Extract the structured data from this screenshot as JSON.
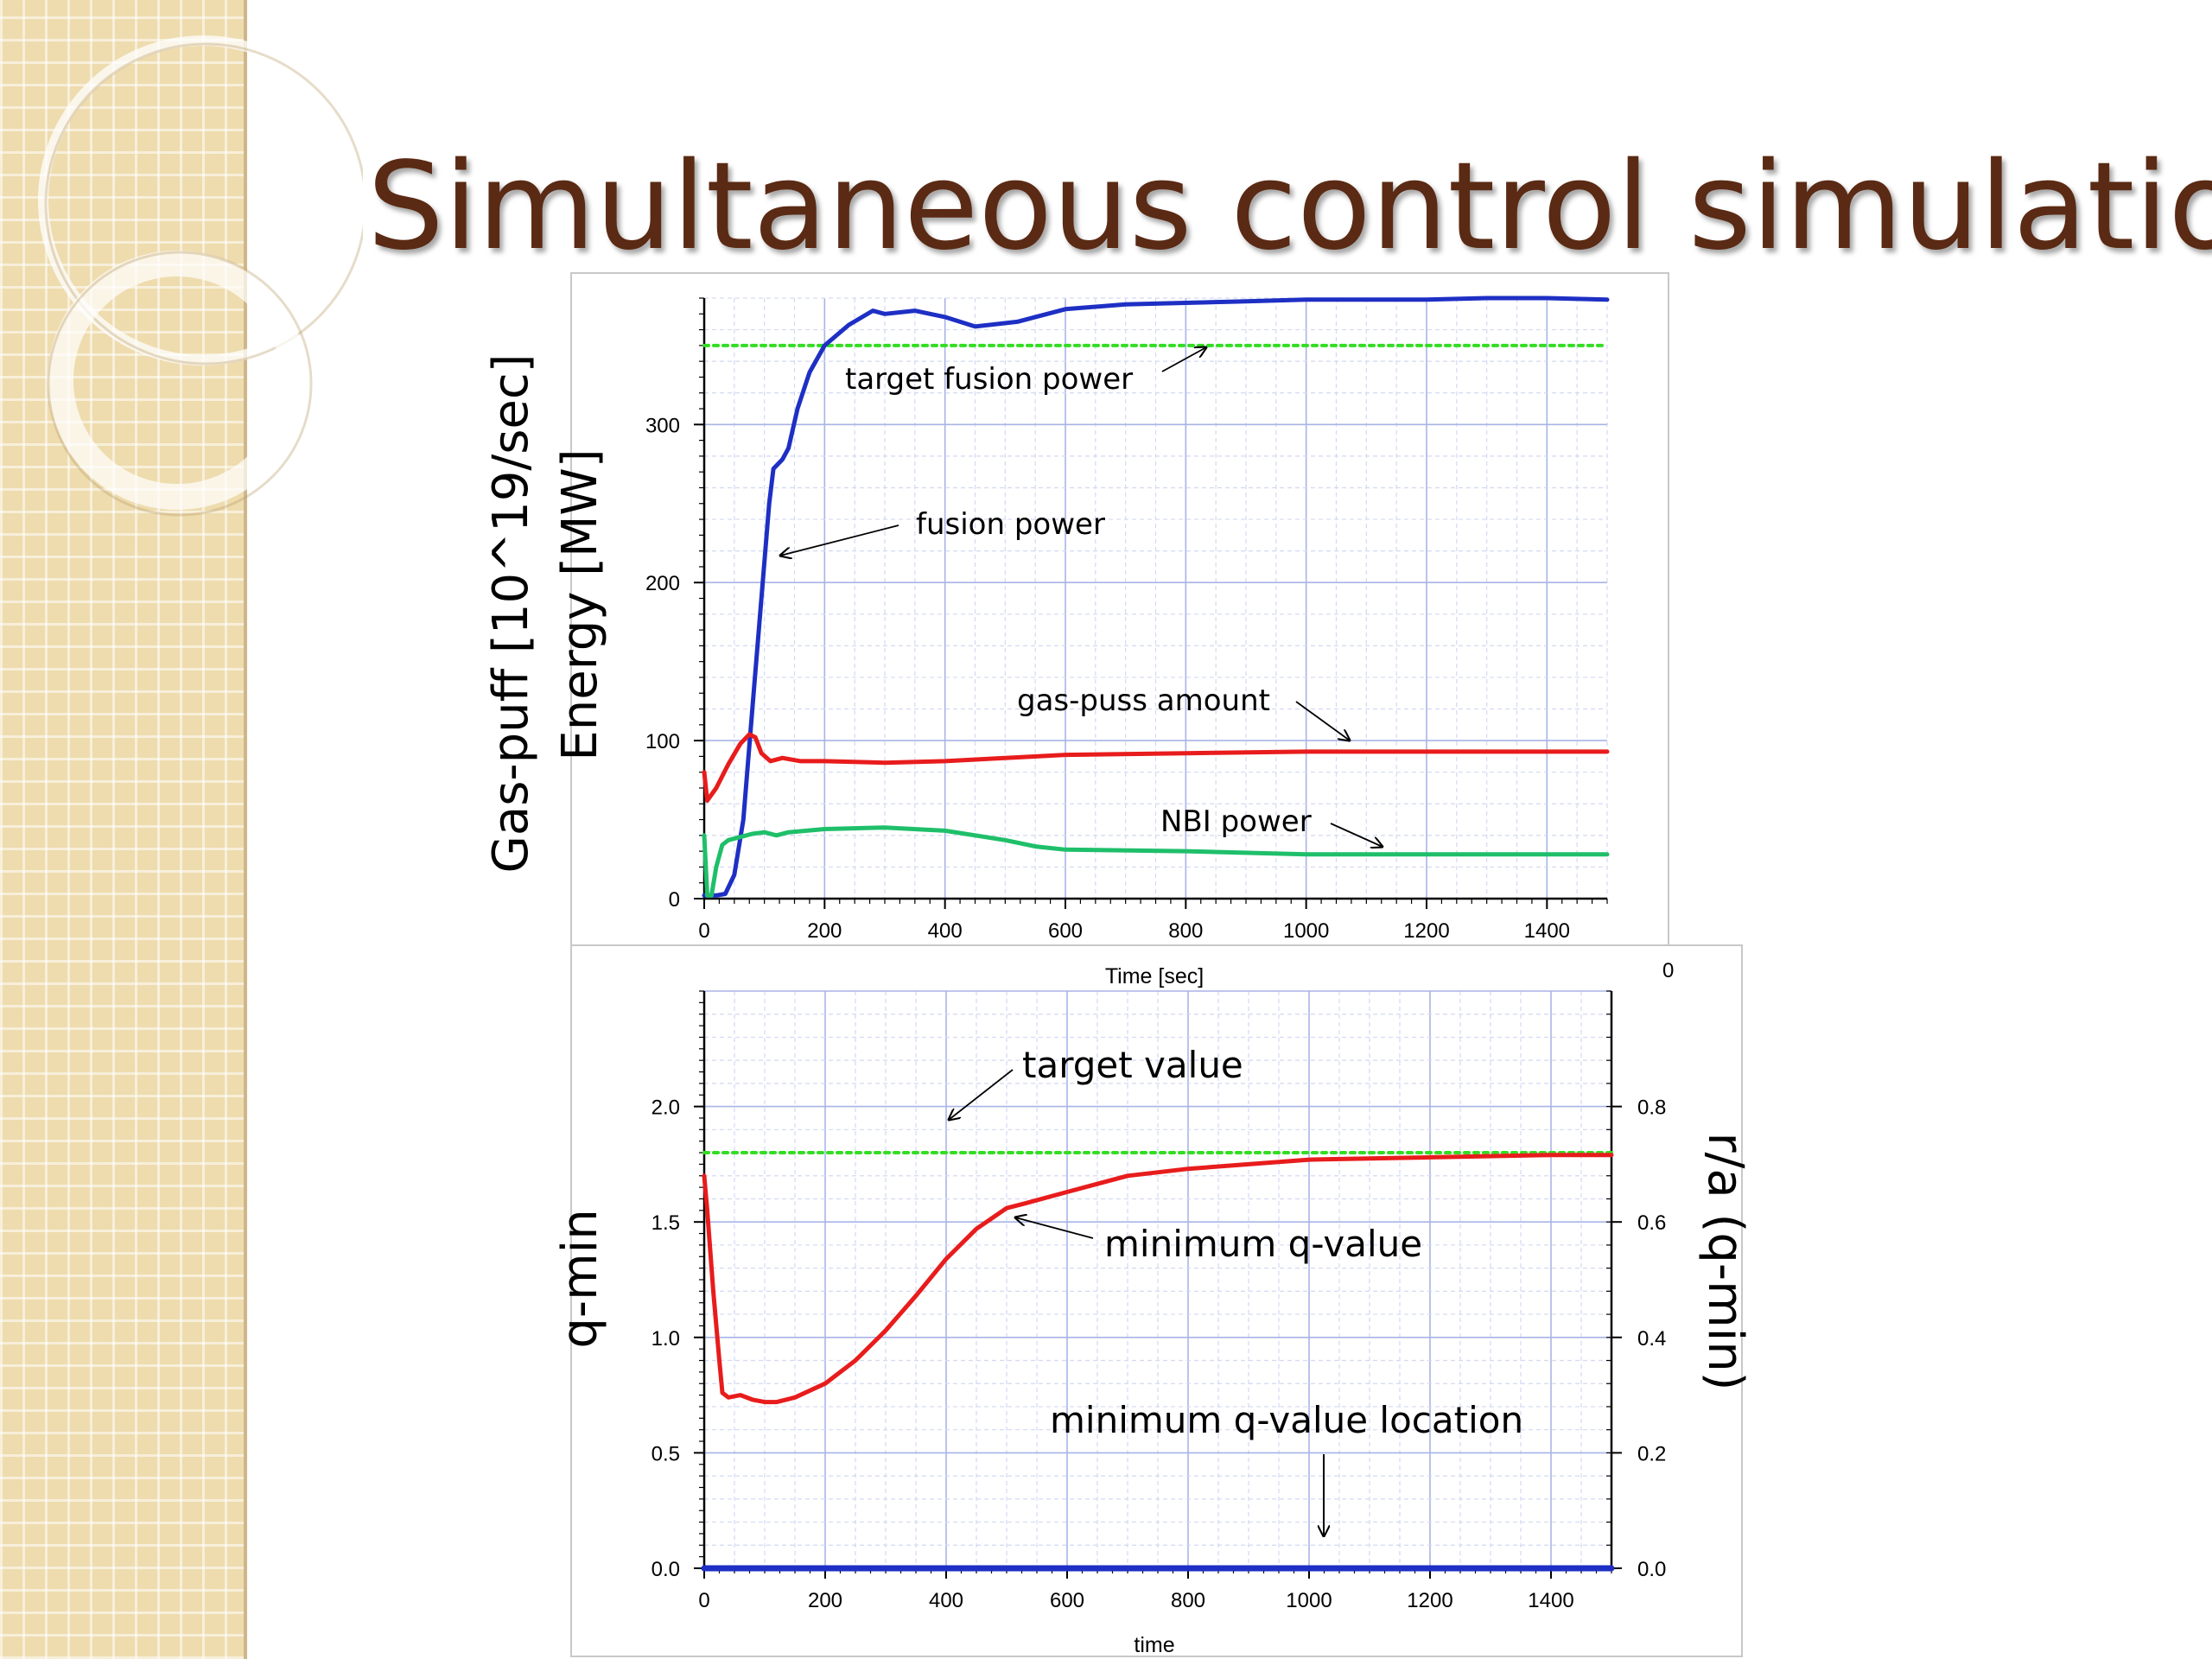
{
  "slide": {
    "title": "Simultaneous control simulation"
  },
  "chart_data": [
    {
      "type": "line",
      "xlabel": "Time [sec]",
      "ylabel_outer": "Gas-puff [10^19/sec]",
      "ylabel_inner": "Energy [MW]",
      "xlim": [
        0,
        1500
      ],
      "ylim": [
        0,
        380
      ],
      "x_ticks": [
        0,
        200,
        400,
        600,
        800,
        1000,
        1200,
        1400
      ],
      "y_ticks": [
        0,
        100,
        200,
        300
      ],
      "grid": true,
      "colors": {
        "fusion": "#1e2fc4",
        "gas": "#e81c1c",
        "nbi": "#1fbf6a",
        "target": "#33dd22"
      },
      "series": [
        {
          "name": "target fusion power",
          "x": [
            0,
            1500
          ],
          "y": [
            350,
            350
          ]
        },
        {
          "name": "fusion power",
          "x": [
            0,
            20,
            35,
            50,
            65,
            80,
            95,
            108,
            115,
            130,
            140,
            155,
            175,
            200,
            240,
            280,
            300,
            350,
            400,
            450,
            520,
            550,
            600,
            700,
            800,
            900,
            1000,
            1100,
            1200,
            1300,
            1400,
            1500
          ],
          "y": [
            2,
            2,
            3,
            15,
            50,
            120,
            190,
            250,
            272,
            278,
            285,
            310,
            333,
            350,
            363,
            372,
            370,
            372,
            368,
            362,
            365,
            368,
            373,
            376,
            377,
            378,
            379,
            379,
            379,
            380,
            380,
            379
          ]
        },
        {
          "name": "gas-puss amount",
          "x": [
            0,
            5,
            20,
            40,
            60,
            75,
            85,
            95,
            110,
            130,
            160,
            200,
            300,
            400,
            500,
            600,
            800,
            1000,
            1200,
            1400,
            1500
          ],
          "y": [
            80,
            62,
            70,
            85,
            98,
            104,
            102,
            92,
            87,
            89,
            87,
            87,
            86,
            87,
            89,
            91,
            92,
            93,
            93,
            93,
            93
          ],
          "annotation": "gas-puss amount"
        },
        {
          "name": "NBI power",
          "x": [
            0,
            5,
            12,
            20,
            30,
            40,
            60,
            80,
            100,
            120,
            140,
            200,
            300,
            400,
            500,
            550,
            600,
            800,
            1000,
            1200,
            1400,
            1500
          ],
          "y": [
            40,
            2,
            2,
            20,
            34,
            37,
            39,
            41,
            42,
            40,
            42,
            44,
            45,
            43,
            37,
            33,
            31,
            30,
            28,
            28,
            28,
            28
          ]
        }
      ],
      "annotations": [
        "target fusion power",
        "fusion power",
        "gas-puss amount",
        "NBI power"
      ]
    },
    {
      "type": "line",
      "xlabel": "time",
      "ylabel": "q-min",
      "ylabel_right": "r/a (q-min)",
      "xlim": [
        0,
        1500
      ],
      "ylim": [
        0,
        2.5
      ],
      "y_ticks": [
        0.0,
        0.5,
        1.0,
        1.5,
        2.0
      ],
      "y_tick_labels": [
        "0.0",
        "0.5",
        "1.0",
        "1.5",
        "2.0"
      ],
      "y2lim": [
        0,
        1.0
      ],
      "y2_ticks": [
        0.0,
        0.2,
        0.4,
        0.6,
        0.8
      ],
      "y2_tick_labels": [
        "0.0",
        "0.2",
        "0.4",
        "0.6",
        "0.8"
      ],
      "y2_partial_label": "0",
      "x_ticks": [
        0,
        200,
        400,
        600,
        800,
        1000,
        1200,
        1400
      ],
      "grid": true,
      "colors": {
        "qmin": "#e81c1c",
        "location": "#1e2fc4",
        "target": "#33dd22"
      },
      "series": [
        {
          "name": "target value",
          "x": [
            0,
            1500
          ],
          "y": [
            1.8,
            1.8
          ]
        },
        {
          "name": "minimum q-value",
          "x": [
            0,
            5,
            15,
            25,
            30,
            40,
            60,
            80,
            100,
            120,
            150,
            200,
            250,
            300,
            350,
            400,
            450,
            500,
            530,
            600,
            700,
            800,
            900,
            1000,
            1200,
            1400,
            1500
          ],
          "y": [
            1.7,
            1.55,
            1.2,
            0.9,
            0.76,
            0.74,
            0.75,
            0.73,
            0.72,
            0.72,
            0.74,
            0.8,
            0.9,
            1.03,
            1.18,
            1.34,
            1.47,
            1.56,
            1.58,
            1.63,
            1.7,
            1.73,
            1.75,
            1.77,
            1.78,
            1.79,
            1.79
          ]
        },
        {
          "name": "minimum q-value location",
          "x": [
            0,
            1500
          ],
          "y": [
            0.0,
            0.0
          ]
        }
      ],
      "annotations": [
        "target value",
        "minimum q-value",
        "minimum q-value location"
      ]
    }
  ]
}
